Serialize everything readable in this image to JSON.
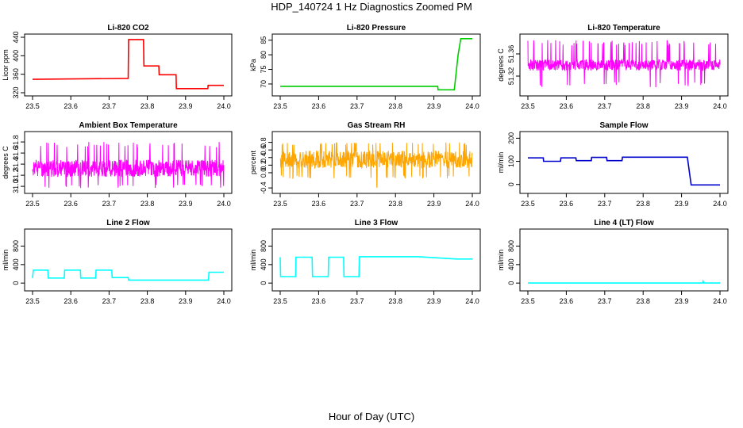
{
  "figure": {
    "title": "HDP_140724  1 Hz Diagnostics Zoomed PM",
    "xlabel": "Hour of Day (UTC)"
  },
  "chart_data": [
    {
      "type": "line",
      "title": "Li-820 CO2",
      "ylabel": "Licor ppm",
      "color": "#ff0000",
      "xlim": [
        23.5,
        24.0
      ],
      "ylim": [
        320,
        440
      ],
      "xticks": [
        "23.5",
        "23.6",
        "23.7",
        "23.8",
        "23.9",
        "24.0"
      ],
      "yticks": [
        "320",
        "360",
        "400",
        "440"
      ],
      "x": [
        23.5,
        23.75,
        23.751,
        23.79,
        23.791,
        23.83,
        23.831,
        23.875,
        23.876,
        23.958,
        23.959,
        23.965,
        23.966,
        24.0
      ],
      "y": [
        349,
        351,
        435,
        435,
        378,
        378,
        359,
        359,
        329,
        329,
        336,
        336,
        336,
        336
      ]
    },
    {
      "type": "line",
      "title": "Li-820 Pressure",
      "ylabel": "kPa",
      "color": "#00cc00",
      "xlim": [
        23.5,
        24.0
      ],
      "ylim": [
        67,
        86
      ],
      "xticks": [
        "23.5",
        "23.6",
        "23.7",
        "23.8",
        "23.9",
        "24.0"
      ],
      "yticks": [
        "70",
        "75",
        "80",
        "85"
      ],
      "x": [
        23.5,
        23.91,
        23.911,
        23.953,
        23.963,
        23.97,
        23.975,
        24.0
      ],
      "y": [
        69.2,
        69.2,
        68.0,
        68.0,
        80.0,
        85.5,
        85.5,
        85.5
      ]
    },
    {
      "type": "line",
      "title": "Li-820 Temperature",
      "ylabel": "degrees C",
      "color": "#ff00ff",
      "xlim": [
        23.5,
        24.0
      ],
      "ylim": [
        51.29,
        51.39
      ],
      "xticks": [
        "23.5",
        "23.6",
        "23.7",
        "23.8",
        "23.9",
        "24.0"
      ],
      "yticks": [
        "51.32",
        "51.36"
      ],
      "noise": {
        "low": 51.33,
        "high": 51.35,
        "spike_high": 51.385,
        "spike_low": 51.3
      }
    },
    {
      "type": "line",
      "title": "Ambient Box Temperature",
      "ylabel": "degrees C",
      "color": "#ff00ff",
      "xlim": [
        23.5,
        24.0
      ],
      "ylim": [
        30.93,
        31.93
      ],
      "xticks": [
        "23.5",
        "23.6",
        "23.7",
        "23.8",
        "23.9",
        "24.0"
      ],
      "yticks": [
        "31.0",
        "31.2",
        "31.4",
        "31.6",
        "31.8"
      ],
      "noise": {
        "low": 31.17,
        "high": 31.48,
        "spike_high": 31.8,
        "spike_low": 30.97
      }
    },
    {
      "type": "line",
      "title": "Gas Stream RH",
      "ylabel": "percent",
      "color": "#ffa500",
      "xlim": [
        23.5,
        24.0
      ],
      "ylim": [
        -0.46,
        1.0
      ],
      "xticks": [
        "23.5",
        "23.6",
        "23.7",
        "23.8",
        "23.9",
        "24.0"
      ],
      "yticks": [
        "-0.4",
        "0.0",
        "0.2",
        "0.4",
        "0.6",
        "0.8"
      ],
      "noise": {
        "low": 0.12,
        "high": 0.58,
        "spike_high": 0.8,
        "spike_low": -0.15,
        "dip": {
          "x": 23.752,
          "y": -0.38
        }
      }
    },
    {
      "type": "line",
      "title": "Sample Flow",
      "ylabel": "ml/min",
      "color": "#0000cc",
      "xlim": [
        23.5,
        24.0
      ],
      "ylim": [
        -25,
        215
      ],
      "xticks": [
        "23.5",
        "23.6",
        "23.7",
        "23.8",
        "23.9",
        "24.0"
      ],
      "yticks": [
        "0",
        "100",
        "200"
      ],
      "x": [
        23.5,
        23.54,
        23.541,
        23.585,
        23.586,
        23.625,
        23.626,
        23.665,
        23.666,
        23.705,
        23.706,
        23.745,
        23.746,
        23.915,
        23.925,
        24.0
      ],
      "y": [
        115,
        115,
        100,
        100,
        115,
        115,
        103,
        103,
        117,
        117,
        103,
        103,
        118,
        118,
        -2,
        -2
      ]
    },
    {
      "type": "line",
      "title": "Line 2 Flow",
      "ylabel": "ml/min",
      "color": "#00ffff",
      "xlim": [
        23.5,
        24.0
      ],
      "ylim": [
        -100,
        1100
      ],
      "xticks": [
        "23.5",
        "23.6",
        "23.7",
        "23.8",
        "23.9",
        "24.0"
      ],
      "yticks": [
        "0",
        "400",
        "800"
      ],
      "x": [
        23.5,
        23.502,
        23.54,
        23.541,
        23.583,
        23.584,
        23.625,
        23.626,
        23.665,
        23.666,
        23.707,
        23.708,
        23.75,
        23.751,
        23.96,
        23.961,
        24.0
      ],
      "y": [
        110,
        280,
        280,
        110,
        110,
        280,
        280,
        110,
        110,
        280,
        280,
        120,
        120,
        65,
        65,
        235,
        235
      ]
    },
    {
      "type": "line",
      "title": "Line 3 Flow",
      "ylabel": "ml/min",
      "color": "#00ffff",
      "xlim": [
        23.5,
        24.0
      ],
      "ylim": [
        -100,
        1100
      ],
      "xticks": [
        "23.5",
        "23.6",
        "23.7",
        "23.8",
        "23.9",
        "24.0"
      ],
      "yticks": [
        "0",
        "400",
        "800"
      ],
      "x": [
        23.5,
        23.501,
        23.502,
        23.54,
        23.541,
        23.583,
        23.584,
        23.625,
        23.626,
        23.665,
        23.666,
        23.705,
        23.706,
        23.86,
        23.96,
        24.0
      ],
      "y": [
        560,
        140,
        140,
        140,
        560,
        560,
        140,
        140,
        560,
        560,
        140,
        140,
        570,
        570,
        520,
        520
      ]
    },
    {
      "type": "line",
      "title": "Line 4 (LT) Flow",
      "ylabel": "ml/min",
      "color": "#00ffff",
      "xlim": [
        23.5,
        24.0
      ],
      "ylim": [
        -100,
        1100
      ],
      "xticks": [
        "23.5",
        "23.6",
        "23.7",
        "23.8",
        "23.9",
        "24.0"
      ],
      "yticks": [
        "0",
        "400",
        "800"
      ],
      "x": [
        23.5,
        23.955,
        23.956,
        23.958,
        23.96,
        24.0
      ],
      "y": [
        2,
        2,
        40,
        2,
        2,
        2
      ]
    }
  ]
}
